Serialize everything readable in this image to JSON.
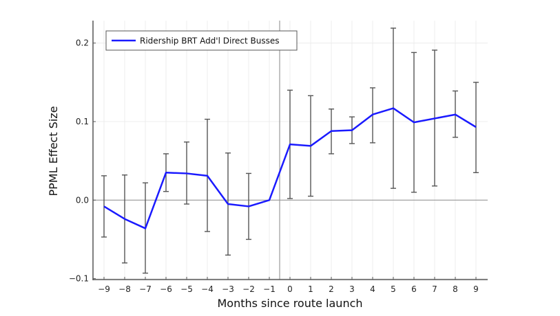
{
  "chart_data": {
    "type": "line",
    "title": "",
    "xlabel": "Months since route launch",
    "ylabel": "PPML Effect Size",
    "x": [
      -9,
      -8,
      -7,
      -6,
      -5,
      -4,
      -3,
      -2,
      -1,
      0,
      1,
      2,
      3,
      4,
      5,
      6,
      7,
      8,
      9
    ],
    "x_tick_labels": [
      "−9",
      "−8",
      "−7",
      "−6",
      "−5",
      "−4",
      "−3",
      "−2",
      "−1",
      "0",
      "1",
      "2",
      "3",
      "4",
      "5",
      "6",
      "7",
      "8",
      "9"
    ],
    "y_ticks": [
      -0.1,
      0.0,
      0.1,
      0.2
    ],
    "y_tick_labels": [
      "−0.1",
      "0.0",
      "0.1",
      "0.2"
    ],
    "xlim": [
      -9.5,
      9.6
    ],
    "ylim": [
      -0.102,
      0.228
    ],
    "grid": true,
    "legend_position": "top-left",
    "reference_lines": {
      "horizontal_y": 0.0,
      "vertical_x": -0.5
    },
    "series": [
      {
        "name": "Ridership BRT Add'l Direct Busses",
        "color": "#1a1aff",
        "values": [
          -0.008,
          -0.024,
          -0.036,
          0.035,
          0.034,
          0.031,
          -0.005,
          -0.008,
          0.0,
          0.071,
          0.069,
          0.088,
          0.089,
          0.109,
          0.117,
          0.099,
          0.104,
          0.109,
          0.093
        ],
        "ci_upper": [
          0.031,
          0.032,
          0.022,
          0.059,
          0.074,
          0.103,
          0.06,
          0.034,
          null,
          0.14,
          0.133,
          0.116,
          0.106,
          0.143,
          0.219,
          0.188,
          0.191,
          0.139,
          0.15
        ],
        "ci_lower": [
          -0.047,
          -0.08,
          -0.093,
          0.011,
          -0.005,
          -0.04,
          -0.07,
          -0.05,
          null,
          0.002,
          0.005,
          0.059,
          0.072,
          0.073,
          0.015,
          0.01,
          0.018,
          0.08,
          0.035
        ]
      }
    ]
  },
  "colors": {
    "line": "#1a1aff",
    "errorbar": "#555555",
    "axis": "#555555",
    "grid": "#ececec",
    "refline": "#999999"
  }
}
